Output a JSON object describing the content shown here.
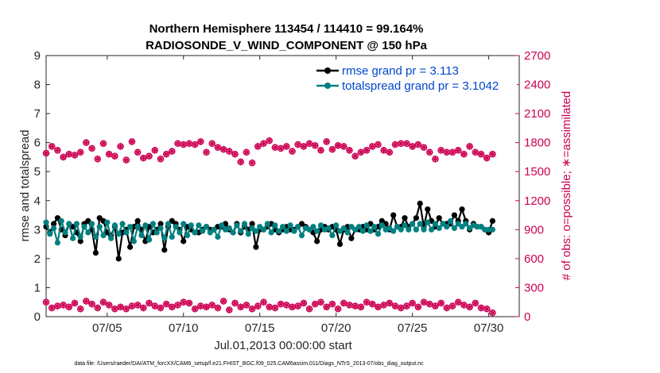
{
  "chart_data": {
    "type": "line",
    "title_lines": [
      "Northern Hemisphere 113454 / 114410 = 99.164%",
      "RADIOSONDE_V_WIND_COMPONENT @ 150 hPa"
    ],
    "xlabel": "Jul.01,2013 00:00:00 start",
    "ylabel_left": "rmse and totalspread",
    "ylabel_right": "# of obs: o=possible; ∗=assimilated",
    "x_ticks": [
      "07/05",
      "07/10",
      "07/15",
      "07/20",
      "07/25",
      "07/30"
    ],
    "x_tick_days": [
      5,
      10,
      15,
      20,
      25,
      30
    ],
    "xlim": [
      1,
      32
    ],
    "ylim_left": [
      0,
      9
    ],
    "y_ticks_left": [
      "0",
      "1",
      "2",
      "3",
      "4",
      "5",
      "6",
      "7",
      "8",
      "9"
    ],
    "ylim_right": [
      0,
      2700
    ],
    "y_ticks_right": [
      "0",
      "300",
      "600",
      "900",
      "1200",
      "1500",
      "1800",
      "2100",
      "2400",
      "2700"
    ],
    "legend": {
      "position": "top-right",
      "entries": [
        "rmse grand pr = 3.113",
        "totalspread grand pr = 3.1042"
      ]
    },
    "colors": {
      "rmse": "#000000",
      "spread": "#008080",
      "obs": "#cc0052",
      "legend_text": "#0047cc"
    },
    "series_rmse": {
      "name": "rmse",
      "values": [
        3.1,
        2.9,
        3.2,
        3.4,
        3.0,
        2.8,
        3.2,
        3.1,
        2.9,
        2.6,
        3.2,
        3.3,
        3.0,
        2.2,
        3.4,
        3.3,
        2.9,
        2.8,
        3.1,
        2.0,
        2.9,
        3.0,
        2.4,
        3.1,
        3.3,
        3.0,
        2.6,
        3.1,
        2.9,
        3.0,
        3.2,
        2.3,
        3.1,
        3.3,
        3.2,
        3.0,
        2.6,
        3.1,
        3.0,
        2.9,
        2.9,
        3.0,
        3.1,
        3.0,
        3.0,
        3.1,
        3.1,
        3.2,
        3.0,
        2.9,
        3.2,
        2.9,
        3.1,
        3.0,
        3.2,
        2.4,
        3.0,
        3.0,
        3.1,
        3.2,
        3.0,
        2.9,
        3.0,
        3.1,
        3.0,
        3.0,
        3.1,
        3.2,
        3.1,
        3.0,
        2.9,
        2.6,
        3.0,
        3.1,
        3.0,
        3.1,
        3.0,
        2.5,
        3.0,
        3.1,
        2.7,
        3.0,
        3.0,
        3.1,
        3.0,
        3.2,
        3.0,
        3.1,
        3.3,
        3.2,
        3.0,
        3.5,
        3.1,
        3.1,
        3.4,
        3.1,
        3.2,
        3.4,
        3.9,
        3.1,
        3.7,
        3.3,
        3.1,
        3.4,
        3.2,
        3.2,
        3.2,
        3.5,
        3.3,
        3.7,
        3.3,
        3.0,
        3.2,
        3.1,
        3.1,
        3.0,
        2.9,
        3.3
      ],
      "start_day": 1.0,
      "step_days": 0.25
    },
    "series_spread": {
      "name": "totalspread",
      "values": [
        3.25,
        2.85,
        3.05,
        2.55,
        3.3,
        2.9,
        3.2,
        2.7,
        3.2,
        2.75,
        3.1,
        2.9,
        3.2,
        2.75,
        3.1,
        2.8,
        3.25,
        2.7,
        3.15,
        2.85,
        3.2,
        2.9,
        3.1,
        2.6,
        3.1,
        2.8,
        3.15,
        2.65,
        3.2,
        2.9,
        3.05,
        2.7,
        3.2,
        2.75,
        3.1,
        2.9,
        3.2,
        2.8,
        3.15,
        2.9,
        3.15,
        2.95,
        3.1,
        2.9,
        3.0,
        2.75,
        3.15,
        3.0,
        3.05,
        2.9,
        3.15,
        2.95,
        3.2,
        2.85,
        3.05,
        2.95,
        3.1,
        3.0,
        3.2,
        2.9,
        3.15,
        2.95,
        3.1,
        2.95,
        3.15,
        2.95,
        3.1,
        2.8,
        3.05,
        3.0,
        3.1,
        2.95,
        3.15,
        3.0,
        3.05,
        2.8,
        3.15,
        2.95,
        3.05,
        2.9,
        3.1,
        3.0,
        3.1,
        2.95,
        3.15,
        2.95,
        3.1,
        2.85,
        3.15,
        3.0,
        3.05,
        2.95,
        3.1,
        3.0,
        3.15,
        3.0,
        3.2,
        3.0,
        3.2,
        3.0,
        3.25,
        3.0,
        3.2,
        3.05,
        3.2,
        3.1,
        3.3,
        3.05,
        3.2,
        3.1,
        3.2,
        3.05,
        3.15,
        3.1,
        3.1,
        3.0,
        3.0,
        3.0
      ],
      "start_day": 1.0,
      "step_days": 0.25
    },
    "series_obs_possible": {
      "name": "possible (o)",
      "values": [
        1690,
        1760,
        1720,
        1650,
        1680,
        1670,
        1700,
        1800,
        1740,
        1630,
        1790,
        1680,
        1660,
        1760,
        1620,
        1810,
        1700,
        1640,
        1660,
        1720,
        1630,
        1680,
        1710,
        1790,
        1780,
        1790,
        1780,
        1810,
        1700,
        1790,
        1750,
        1730,
        1710,
        1680,
        1600,
        1700,
        1590,
        1760,
        1790,
        1820,
        1750,
        1740,
        1760,
        1710,
        1780,
        1760,
        1790,
        1770,
        1720,
        1810,
        1730,
        1770,
        1760,
        1720,
        1660,
        1700,
        1720,
        1760,
        1780,
        1720,
        1700,
        1780,
        1790,
        1790,
        1760,
        1780,
        1750,
        1700,
        1630,
        1720,
        1700,
        1700,
        1720,
        1680,
        1760,
        1700,
        1680,
        1640,
        1680
      ],
      "start_day": 1.0,
      "step_days": 0.375
    },
    "series_obs_assimilated": {
      "name": "assimilated (∗)",
      "values": [
        150,
        90,
        110,
        120,
        100,
        140,
        80,
        160,
        130,
        90,
        150,
        120,
        80,
        100,
        80,
        110,
        120,
        90,
        140,
        110,
        90,
        130,
        100,
        120,
        150,
        140,
        80,
        110,
        100,
        120,
        90,
        160,
        70,
        140,
        100,
        120,
        80,
        110,
        150,
        100,
        90,
        130,
        120,
        100,
        110,
        140,
        80,
        130,
        150,
        100,
        130,
        80,
        140,
        120,
        110,
        100,
        150,
        130,
        100,
        120,
        140,
        110,
        90,
        110,
        140,
        100,
        150,
        130,
        110,
        140,
        90,
        110,
        150,
        120,
        100,
        140,
        90,
        80,
        40
      ],
      "start_day": 1.0,
      "step_days": 0.375
    },
    "footer": "data file: /Users/raeder/DAI/ATM_forcXX/CAM6_setup/f.e21.FHIST_BGC.f09_025.CAM6assim.011/Diags_NTrS_2013-07/obs_diag_output.nc"
  }
}
